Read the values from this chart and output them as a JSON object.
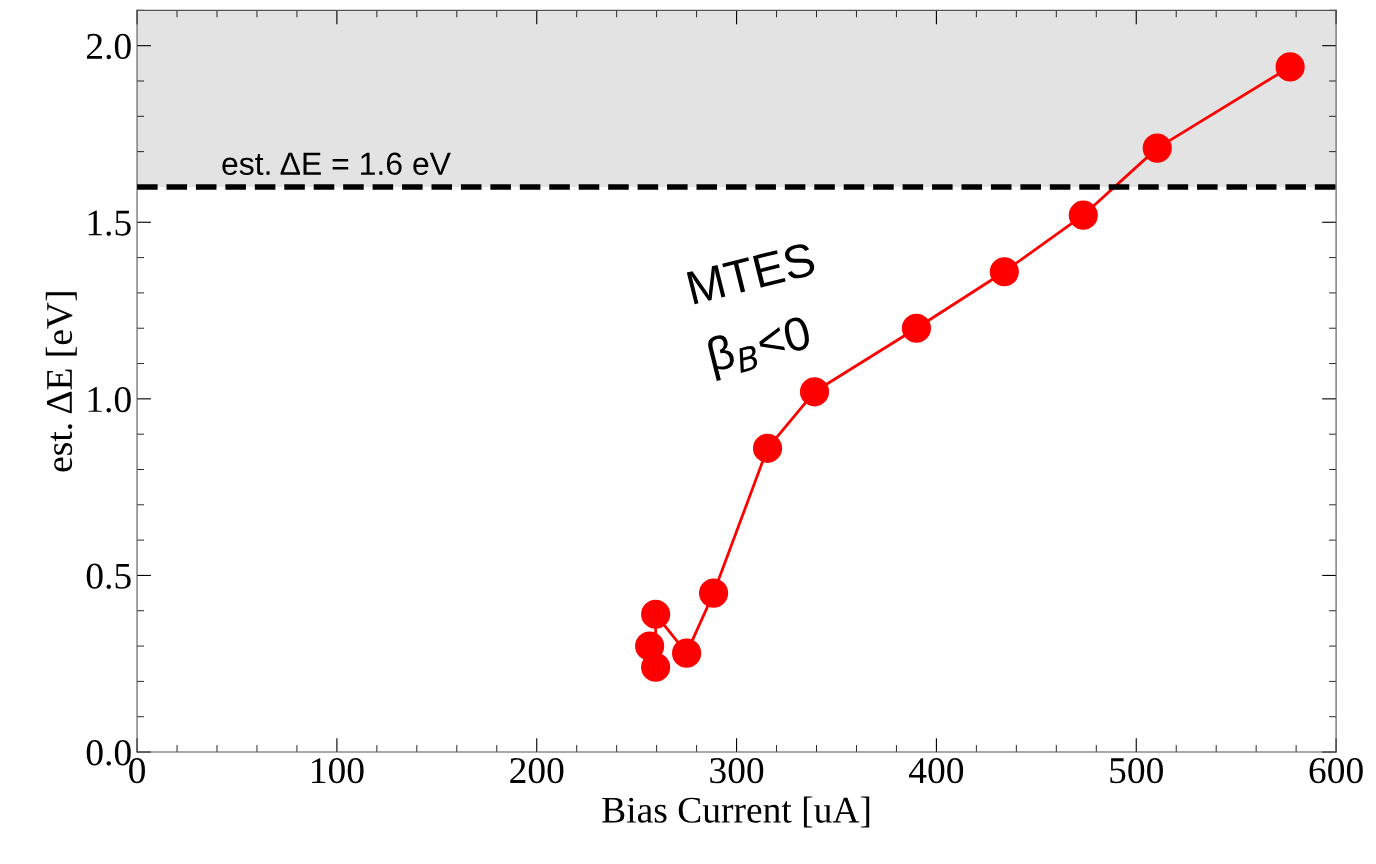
{
  "chart_data": {
    "type": "line",
    "xlabel": "Bias Current [uA]",
    "ylabel": "est. ΔE [eV]",
    "x": [
      256.5,
      259.5,
      259.5,
      275,
      288.5,
      315.5,
      339,
      390,
      434,
      473.5,
      510.5,
      577
    ],
    "series": [
      {
        "color": "#ff0000",
        "values": [
          0.3,
          0.24,
          0.39,
          0.28,
          0.45,
          0.86,
          1.02,
          1.2,
          1.36,
          1.52,
          1.71,
          1.94
        ]
      }
    ],
    "marker": "circle",
    "line_style": "solid",
    "grid": false,
    "legend": false,
    "xlim": [
      0,
      600
    ],
    "xticks": [
      0,
      100,
      200,
      300,
      400,
      500,
      600
    ],
    "ylim": [
      0,
      2.1
    ],
    "yticks": [
      {
        "value": 0,
        "label": "0.0"
      },
      0.5,
      {
        "value": 1,
        "label": "1.0"
      },
      1.5,
      {
        "value": 2,
        "label": "2.0"
      }
    ],
    "ref_lines": [
      {
        "axis": "y",
        "value": 1.6,
        "label": "est. ΔE = 1.6 eV",
        "color": "#000000",
        "line_style": "dashed"
      }
    ],
    "bands": [
      {
        "axis": "y",
        "from": 1.6,
        "to": 2.1,
        "color": "#e3e3e3"
      }
    ],
    "annotations": [
      "MTES",
      "β$_{B}$<0"
    ]
  }
}
